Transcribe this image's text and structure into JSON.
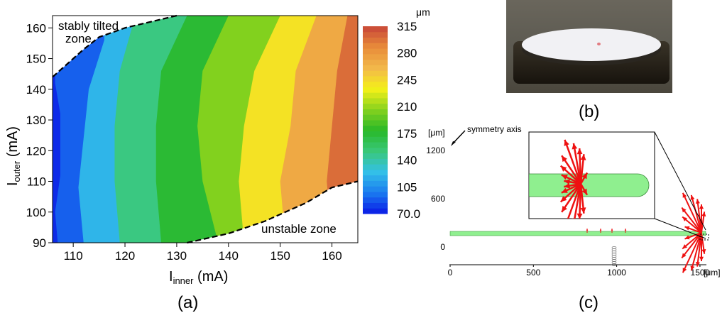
{
  "panel_a": {
    "label": "(a)",
    "colorbar_unit": "μm",
    "colorbar_ticks": [
      "315",
      "280",
      "245",
      "210",
      "175",
      "140",
      "105",
      "70.0"
    ],
    "annotation_top": [
      "stably tilted",
      "zone"
    ],
    "annotation_bottom": "unstable zone",
    "xlabel_main": "I",
    "xlabel_sub": "inner",
    "xlabel_unit": " (mA)",
    "ylabel_main": "I",
    "ylabel_sub": "outer",
    "ylabel_unit": " (mA)"
  },
  "panel_b": {
    "label": "(b)"
  },
  "panel_c": {
    "label": "(c)",
    "y_unit": "[μm]",
    "x_unit": "[μm]",
    "annotation": "symmetry axis"
  },
  "colors": {
    "colormap": [
      "#0a18e6",
      "#1a7af0",
      "#33c0e8",
      "#3ac87a",
      "#28b828",
      "#86d21e",
      "#f4f018",
      "#f2b84a",
      "#e88c3a",
      "#c84638"
    ],
    "tube_fill": "#8fef8f",
    "arrow": "#ee1111"
  },
  "chart_data": [
    {
      "type": "heatmap",
      "title": "",
      "xlabel": "Iinner (mA)",
      "ylabel": "Iouter (mA)",
      "xlim": [
        106,
        165
      ],
      "ylim": [
        90,
        164
      ],
      "xticks": [
        110,
        120,
        130,
        140,
        150,
        160
      ],
      "yticks": [
        90,
        100,
        110,
        120,
        130,
        140,
        150,
        160
      ],
      "colorbar": {
        "label": "μm",
        "range": [
          70,
          315
        ],
        "ticks": [
          70,
          105,
          140,
          175,
          210,
          245,
          280,
          315
        ]
      },
      "iso_lines": [
        {
          "value": 90,
          "points": [
            [
              106.5,
              142
            ],
            [
              107.5,
              132
            ],
            [
              107.5,
              112
            ],
            [
              106.5,
              100
            ],
            [
              107,
              90
            ]
          ]
        },
        {
          "value": 120,
          "points": [
            [
              116,
              156
            ],
            [
              113,
              140
            ],
            [
              112,
              124
            ],
            [
              111,
              108
            ],
            [
              112,
              90
            ]
          ]
        },
        {
          "value": 150,
          "points": [
            [
              122,
              164
            ],
            [
              119,
              146
            ],
            [
              118,
              128
            ],
            [
              118,
              110
            ],
            [
              119,
              90
            ]
          ]
        },
        {
          "value": 175,
          "points": [
            [
              132,
              164
            ],
            [
              127,
              146
            ],
            [
              126,
              128
            ],
            [
              126,
              110
            ],
            [
              127,
              90
            ]
          ]
        },
        {
          "value": 205,
          "points": [
            [
              140,
              164
            ],
            [
              135,
              146
            ],
            [
              134,
              128
            ],
            [
              135,
              110
            ],
            [
              138,
              90
            ]
          ]
        },
        {
          "value": 240,
          "points": [
            [
              150,
              164
            ],
            [
              145,
              146
            ],
            [
              143,
              128
            ],
            [
              142,
              110
            ],
            [
              143,
              90
            ]
          ]
        },
        {
          "value": 270,
          "points": [
            [
              157,
              164
            ],
            [
              153,
              146
            ],
            [
              152,
              128
            ],
            [
              150,
              110
            ],
            [
              151,
              90
            ]
          ]
        },
        {
          "value": 300,
          "points": [
            [
              163,
              164
            ],
            [
              161,
              146
            ],
            [
              160,
              128
            ],
            [
              159,
              110
            ],
            [
              160,
              90
            ]
          ]
        }
      ],
      "boundary_stably_tilted": [
        [
          106,
          144
        ],
        [
          112,
          153
        ],
        [
          115,
          157
        ],
        [
          120,
          160
        ],
        [
          130,
          164
        ]
      ],
      "boundary_unstable": [
        [
          132,
          90
        ],
        [
          140,
          93
        ],
        [
          147,
          97
        ],
        [
          155,
          103
        ],
        [
          160,
          108
        ],
        [
          165,
          110
        ]
      ]
    },
    {
      "type": "scatter",
      "title": "",
      "xlim": [
        0,
        1600
      ],
      "ylim": [
        -100,
        1400
      ],
      "xticks": [
        0,
        500,
        1000,
        1500
      ],
      "yticks": [
        0,
        600,
        1200
      ]
    }
  ]
}
